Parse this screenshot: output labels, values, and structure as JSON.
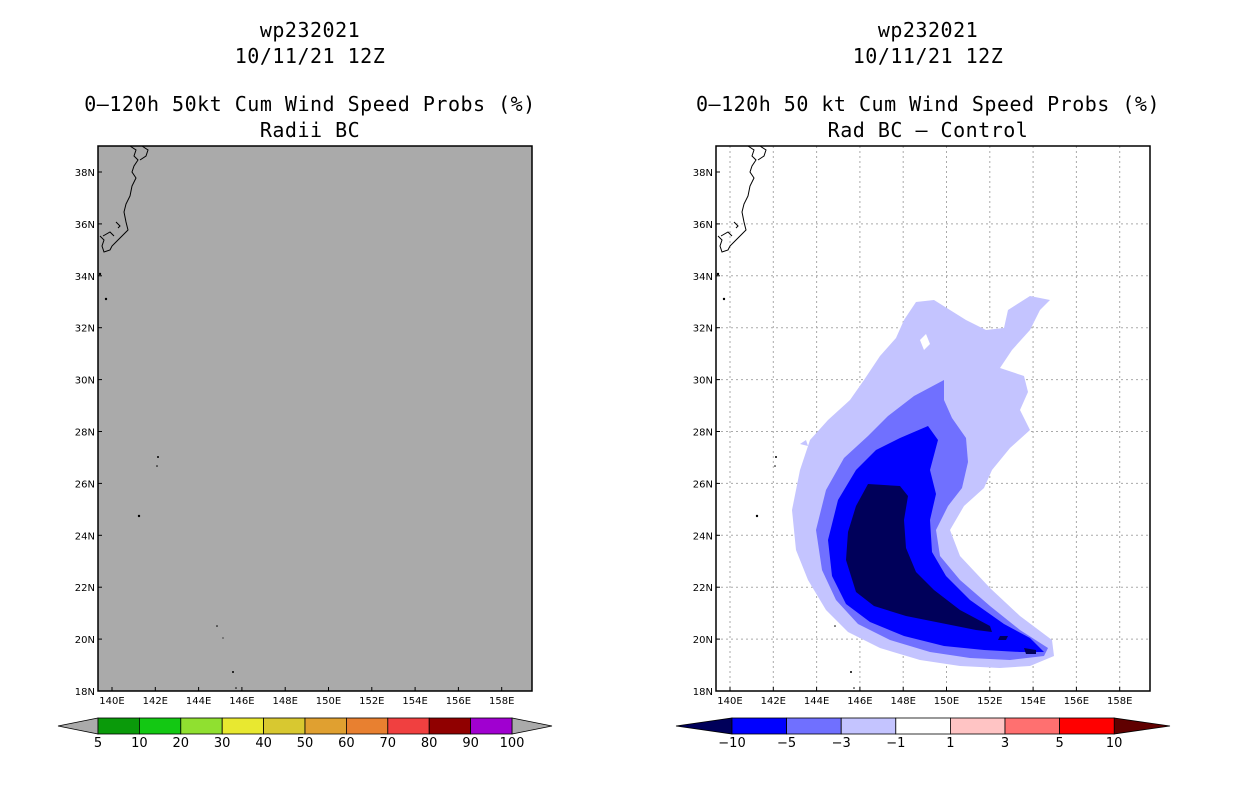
{
  "left": {
    "title_id": "wp232021",
    "title_date": "10/11/21 12Z",
    "title_product": "0–120h 50kt Cum Wind Speed Probs (%)",
    "title_sub": "Radii BC",
    "lat_labels": [
      "38N",
      "36N",
      "34N",
      "32N",
      "30N",
      "28N",
      "26N",
      "24N",
      "22N",
      "20N",
      "18N"
    ],
    "lon_labels": [
      "140E",
      "142E",
      "144E",
      "146E",
      "148E",
      "150E",
      "152E",
      "154E",
      "156E",
      "158E"
    ],
    "fill_color": "#aaaaaa",
    "colorbar": {
      "labels": [
        "5",
        "10",
        "20",
        "30",
        "40",
        "50",
        "60",
        "70",
        "80",
        "90",
        "100"
      ],
      "colors": [
        "#0a9a0a",
        "#13c813",
        "#90e030",
        "#e8e830",
        "#d8c830",
        "#e0a030",
        "#e88030",
        "#f04040",
        "#900000",
        "#a000d0"
      ]
    }
  },
  "right": {
    "title_id": "wp232021",
    "title_date": "10/11/21 12Z",
    "title_product": "0–120h 50 kt Cum Wind Speed Probs (%)",
    "title_sub": "Rad BC – Control",
    "lat_labels": [
      "38N",
      "36N",
      "34N",
      "32N",
      "30N",
      "28N",
      "26N",
      "24N",
      "22N",
      "20N",
      "18N"
    ],
    "lon_labels": [
      "140E",
      "142E",
      "144E",
      "146E",
      "148E",
      "150E",
      "152E",
      "154E",
      "156E",
      "158E"
    ],
    "colorbar": {
      "labels": [
        "−10",
        "−5",
        "−3",
        "−1",
        "1",
        "3",
        "5",
        "10"
      ],
      "colors": [
        "#00005a",
        "#0000ff",
        "#7070ff",
        "#c4c4ff",
        "#ffffff",
        "#ffc4c4",
        "#ff7070",
        "#ff0000",
        "#600000"
      ]
    }
  }
}
